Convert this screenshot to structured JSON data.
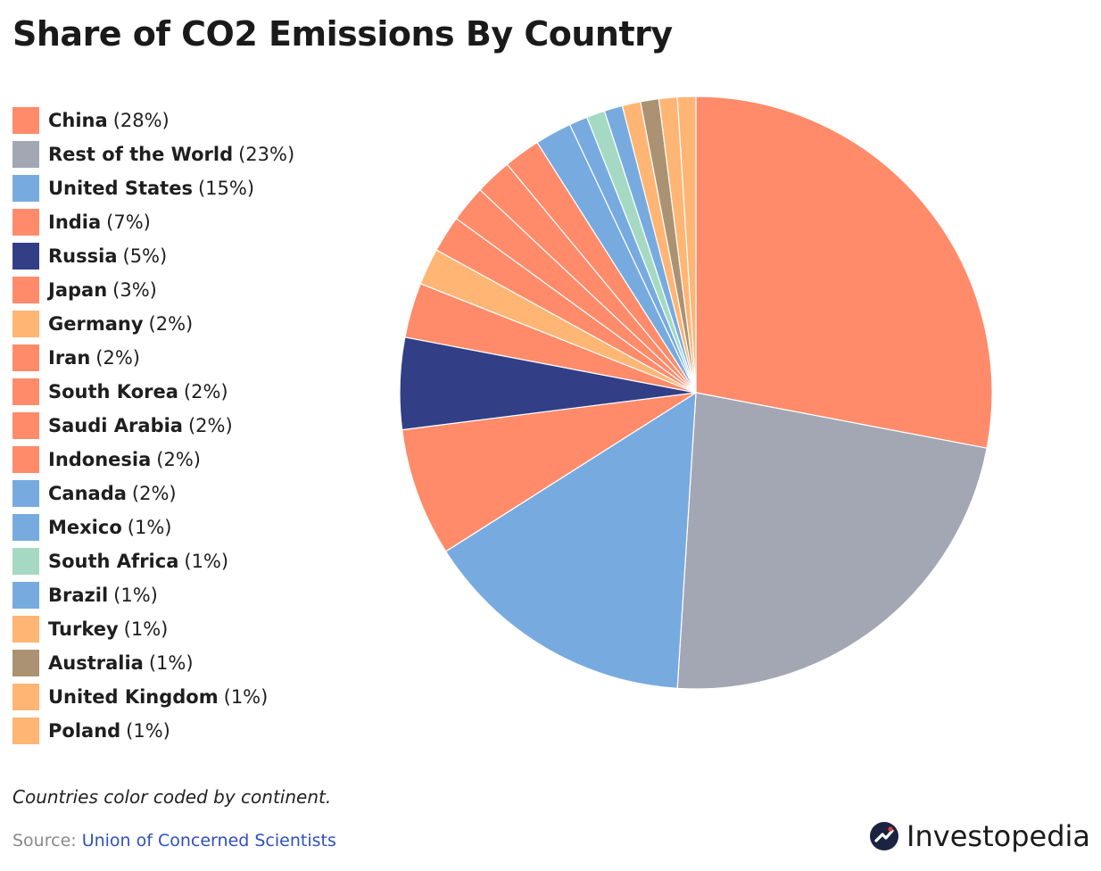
{
  "chart_data": {
    "type": "pie",
    "title": "Share of CO2 Emissions By Country",
    "start_angle": "12 o'clock",
    "direction": "clockwise",
    "slices": [
      {
        "label": "China",
        "value": 28,
        "pct_text": "(28%)",
        "color": "#FF8B6A"
      },
      {
        "label": "Rest of the World",
        "value": 23,
        "pct_text": "(23%)",
        "color": "#A3A7B4"
      },
      {
        "label": "United States",
        "value": 15,
        "pct_text": "(15%)",
        "color": "#77ABE0"
      },
      {
        "label": "India",
        "value": 7,
        "pct_text": "(7%)",
        "color": "#FF8B6A"
      },
      {
        "label": "Russia",
        "value": 5,
        "pct_text": "(5%)",
        "color": "#323F87"
      },
      {
        "label": "Japan",
        "value": 3,
        "pct_text": "(3%)",
        "color": "#FF8B6A"
      },
      {
        "label": "Germany",
        "value": 2,
        "pct_text": "(2%)",
        "color": "#FFB574"
      },
      {
        "label": "Iran",
        "value": 2,
        "pct_text": "(2%)",
        "color": "#FF8B6A"
      },
      {
        "label": "South Korea",
        "value": 2,
        "pct_text": "(2%)",
        "color": "#FF8B6A"
      },
      {
        "label": "Saudi Arabia",
        "value": 2,
        "pct_text": "(2%)",
        "color": "#FF8B6A"
      },
      {
        "label": "Indonesia",
        "value": 2,
        "pct_text": "(2%)",
        "color": "#FF8B6A"
      },
      {
        "label": "Canada",
        "value": 2,
        "pct_text": "(2%)",
        "color": "#77ABE0"
      },
      {
        "label": "Mexico",
        "value": 1,
        "pct_text": "(1%)",
        "color": "#77ABE0"
      },
      {
        "label": "South Africa",
        "value": 1,
        "pct_text": "(1%)",
        "color": "#A6D9C3"
      },
      {
        "label": "Brazil",
        "value": 1,
        "pct_text": "(1%)",
        "color": "#77ABE0"
      },
      {
        "label": "Turkey",
        "value": 1,
        "pct_text": "(1%)",
        "color": "#FFB574"
      },
      {
        "label": "Australia",
        "value": 1,
        "pct_text": "(1%)",
        "color": "#AB9273"
      },
      {
        "label": "United Kingdom",
        "value": 1,
        "pct_text": "(1%)",
        "color": "#FFB574"
      },
      {
        "label": "Poland",
        "value": 1,
        "pct_text": "(1%)",
        "color": "#FFB574"
      }
    ],
    "legend_position": "left"
  },
  "footer": {
    "note": "Countries color coded by continent.",
    "source_label": "Source: ",
    "source_link": "Union of Concerned Scientists"
  },
  "brand": {
    "name": "Investopedia",
    "icon": "investopedia-logo-icon"
  }
}
